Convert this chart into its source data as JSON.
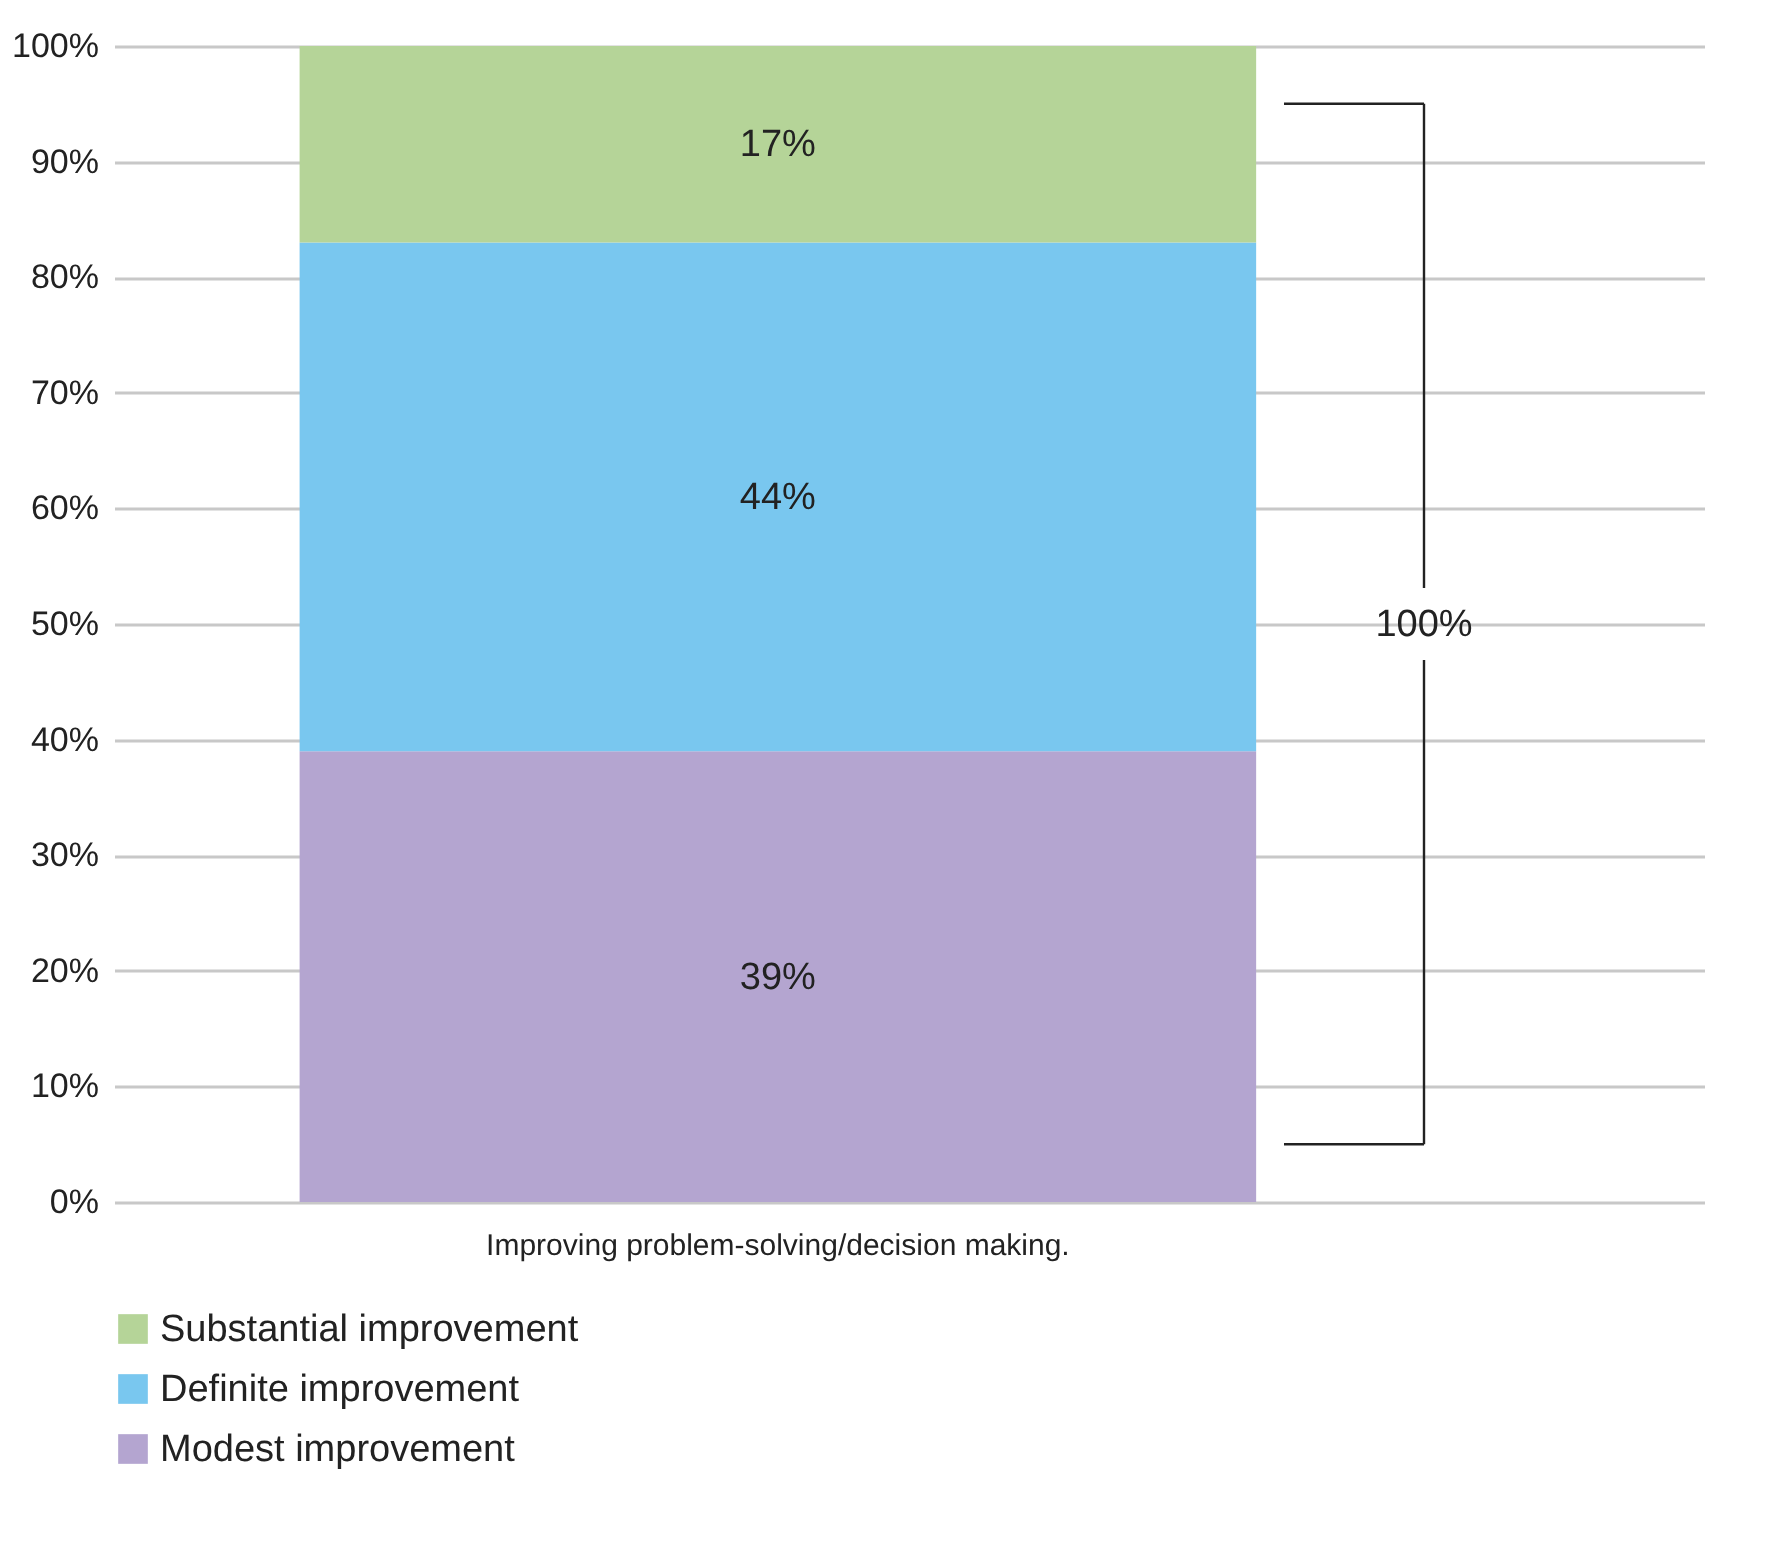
{
  "chart_data": {
    "type": "bar",
    "stacked": true,
    "categories": [
      "Improving problem-solving/decision making."
    ],
    "series": [
      {
        "name": "Modest improvement",
        "color": "#b4a5d0",
        "values": [
          39
        ]
      },
      {
        "name": "Definite improvement",
        "color": "#79c7ef",
        "values": [
          44
        ]
      },
      {
        "name": "Substantial improvement",
        "color": "#b5d498",
        "values": [
          17
        ]
      }
    ],
    "ylim": [
      0,
      100
    ],
    "yticks": [
      {
        "value": 0,
        "label": "0%"
      },
      {
        "value": 10,
        "label": "10%"
      },
      {
        "value": 20,
        "label": "20%"
      },
      {
        "value": 30,
        "label": "30%"
      },
      {
        "value": 40,
        "label": "40%"
      },
      {
        "value": 50,
        "label": "50%"
      },
      {
        "value": 60,
        "label": "60%"
      },
      {
        "value": 70,
        "label": "70%"
      },
      {
        "value": 80,
        "label": "80%"
      },
      {
        "value": 90,
        "label": "90%"
      },
      {
        "value": 100,
        "label": "100%"
      }
    ],
    "value_labels": [
      [
        "39%"
      ],
      [
        "44%"
      ],
      [
        "17%"
      ]
    ],
    "ref_lines": [
      {
        "axis": "y",
        "value": 95,
        "color": "#222222"
      },
      {
        "axis": "y",
        "value": 5,
        "color": "#222222"
      }
    ],
    "annotations": [
      "100%"
    ],
    "grid": "y",
    "legend": "bottom"
  }
}
